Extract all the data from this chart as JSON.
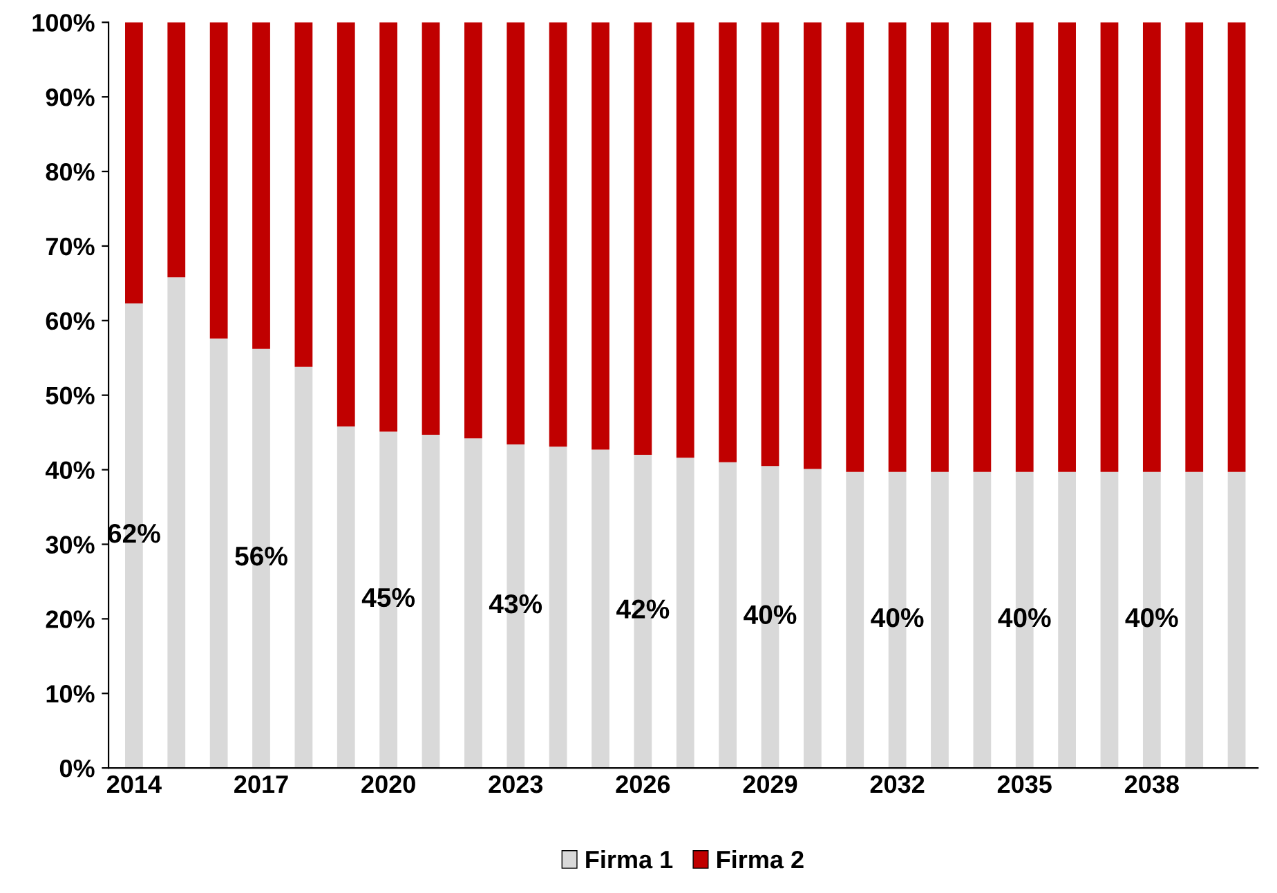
{
  "chart_data": {
    "type": "bar",
    "stacked": true,
    "categories": [
      "2014",
      null,
      null,
      "2017",
      null,
      null,
      "2020",
      null,
      null,
      "2023",
      null,
      null,
      "2026",
      null,
      null,
      "2029",
      null,
      null,
      "2032",
      null,
      null,
      "2035",
      null,
      null,
      "2038",
      null,
      null
    ],
    "series": [
      {
        "name": "Firma 1",
        "color": "#d9d9d9",
        "values": [
          62.3,
          65.8,
          57.6,
          56.2,
          53.8,
          45.8,
          45.1,
          44.7,
          44.2,
          43.4,
          43.1,
          42.7,
          42.0,
          41.6,
          41.0,
          40.5,
          40.1,
          39.7,
          39.7,
          39.7,
          39.7,
          39.7,
          39.7,
          39.7,
          39.7,
          39.7,
          39.7
        ],
        "value_labels": [
          "62%",
          null,
          null,
          "56%",
          null,
          null,
          "45%",
          null,
          null,
          "43%",
          null,
          null,
          "42%",
          null,
          null,
          "40%",
          null,
          null,
          "40%",
          null,
          null,
          "40%",
          null,
          null,
          "40%",
          null,
          null
        ]
      },
      {
        "name": "Firma 2",
        "color": "#c00000",
        "values": [
          37.7,
          34.2,
          42.4,
          43.8,
          46.2,
          54.2,
          54.9,
          55.3,
          55.8,
          56.6,
          56.9,
          57.3,
          58.0,
          58.4,
          59.0,
          59.5,
          59.9,
          60.3,
          60.3,
          60.3,
          60.3,
          60.3,
          60.3,
          60.3,
          60.3,
          60.3,
          60.3
        ]
      }
    ],
    "ylim": [
      0,
      100
    ],
    "yticks": [
      {
        "value": 0,
        "label": "0%"
      },
      {
        "value": 10,
        "label": "10%"
      },
      {
        "value": 20,
        "label": "20%"
      },
      {
        "value": 30,
        "label": "30%"
      },
      {
        "value": 40,
        "label": "40%"
      },
      {
        "value": 50,
        "label": "50%"
      },
      {
        "value": 60,
        "label": "60%"
      },
      {
        "value": 70,
        "label": "70%"
      },
      {
        "value": 80,
        "label": "80%"
      },
      {
        "value": 90,
        "label": "90%"
      },
      {
        "value": 100,
        "label": "100%"
      }
    ],
    "grid": false,
    "legend": "bottom"
  }
}
